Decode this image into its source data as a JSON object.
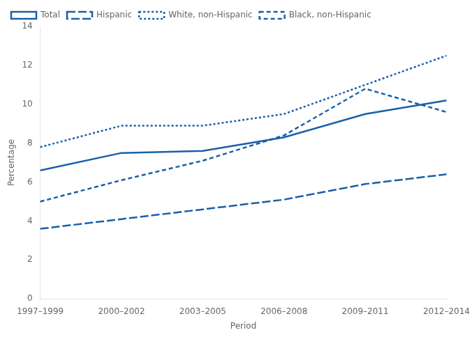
{
  "chart_data": {
    "type": "line",
    "xlabel": "Period",
    "ylabel": "Percentage",
    "categories": [
      "1997–1999",
      "2000–2002",
      "2003–2005",
      "2006–2008",
      "2009–2011",
      "2012–2014"
    ],
    "series": [
      {
        "name": "Total",
        "color": "#1a5fa8",
        "line_style": "solid",
        "values": [
          6.6,
          7.5,
          7.6,
          8.3,
          9.5,
          10.2
        ]
      },
      {
        "name": "Hispanic",
        "color": "#1a5fa8",
        "line_style": "long-dash",
        "values": [
          3.6,
          4.1,
          4.6,
          5.1,
          5.9,
          6.4
        ]
      },
      {
        "name": "White, non-Hispanic",
        "color": "#1a5fa8",
        "line_style": "dotted",
        "values": [
          7.8,
          8.9,
          8.9,
          9.5,
          11.0,
          12.5
        ]
      },
      {
        "name": "Black, non-Hispanic",
        "color": "#1a5fa8",
        "line_style": "dashed",
        "values": [
          5.0,
          6.1,
          7.1,
          8.4,
          10.8,
          9.6
        ]
      }
    ],
    "ylim": [
      0,
      14
    ],
    "yticks": [
      0,
      2,
      4,
      6,
      8,
      10,
      12,
      14
    ],
    "grid": false,
    "legend": "upper left"
  }
}
